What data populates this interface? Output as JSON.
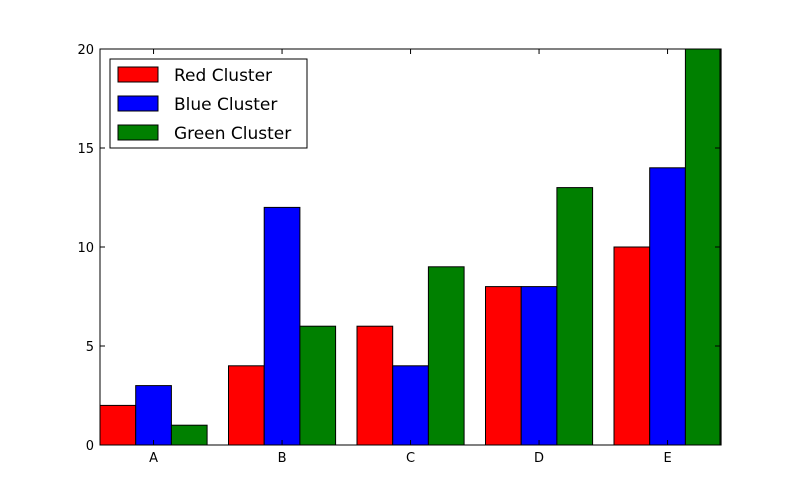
{
  "chart_data": {
    "type": "bar",
    "categories": [
      "A",
      "B",
      "C",
      "D",
      "E"
    ],
    "series": [
      {
        "name": "Red Cluster",
        "color": "#ff0000",
        "values": [
          2,
          4,
          6,
          8,
          10
        ]
      },
      {
        "name": "Blue Cluster",
        "color": "#0000ff",
        "values": [
          3,
          12,
          4,
          8,
          14
        ]
      },
      {
        "name": "Green Cluster",
        "color": "#008000",
        "values": [
          1,
          6,
          9,
          13,
          20
        ]
      }
    ],
    "ylim": [
      0,
      20
    ],
    "yticks": [
      0,
      5,
      10,
      15,
      20
    ],
    "title": "",
    "xlabel": "",
    "ylabel": "",
    "grid": false,
    "legend_position": "top-left"
  }
}
